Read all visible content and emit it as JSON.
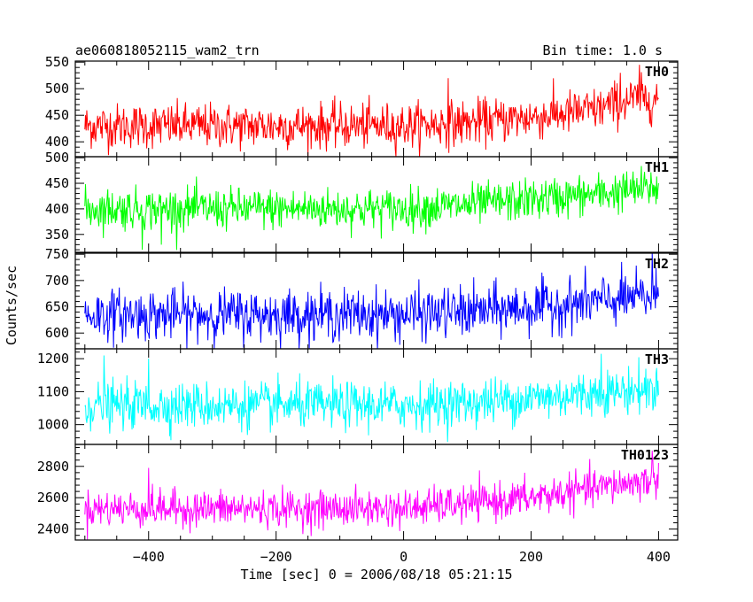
{
  "header": {
    "title": "ae060818052115_wam2_trn",
    "bin_time": "Bin time: 1.0 s"
  },
  "chart_data": {
    "type": "line",
    "xlabel": "Time [sec] 0 = 2006/08/18 05:21:15",
    "ylabel": "Counts/sec",
    "xlim": [
      -515,
      430
    ],
    "xticks_major": [
      -400,
      -200,
      0,
      200,
      400
    ],
    "xtick_labels": [
      "−400",
      "−200",
      "0",
      "200",
      "400"
    ],
    "x_start": -500,
    "x_end": 400,
    "bin_time": 1.0,
    "panels": [
      {
        "name": "TH0",
        "color": "#ff0000",
        "ylim": [
          372,
          552
        ],
        "yticks": [
          400,
          450,
          500,
          550
        ],
        "ytick_labels": [
          "400",
          "450",
          "500",
          "550"
        ],
        "trend": [
          [
            -500,
            430
          ],
          [
            0,
            430
          ],
          [
            100,
            436
          ],
          [
            200,
            446
          ],
          [
            300,
            460
          ],
          [
            350,
            478
          ],
          [
            400,
            482
          ]
        ],
        "noise_sd": 21,
        "spikes": [
          [
            70,
            520
          ],
          [
            340,
            530
          ],
          [
            370,
            545
          ]
        ]
      },
      {
        "name": "TH1",
        "color": "#00ff00",
        "ylim": [
          315,
          502
        ],
        "yticks": [
          350,
          400,
          450,
          500
        ],
        "ytick_labels": [
          "350",
          "400",
          "450",
          "500"
        ],
        "trend": [
          [
            -500,
            400
          ],
          [
            0,
            400
          ],
          [
            100,
            407
          ],
          [
            200,
            418
          ],
          [
            300,
            428
          ],
          [
            400,
            442
          ]
        ],
        "noise_sd": 20,
        "spikes": [
          [
            -410,
            320
          ],
          [
            -380,
            330
          ]
        ]
      },
      {
        "name": "TH2",
        "color": "#0000ff",
        "ylim": [
          570,
          752
        ],
        "yticks": [
          600,
          650,
          700,
          750
        ],
        "ytick_labels": [
          "600",
          "650",
          "700",
          "750"
        ],
        "trend": [
          [
            -500,
            635
          ],
          [
            0,
            635
          ],
          [
            100,
            640
          ],
          [
            200,
            648
          ],
          [
            300,
            660
          ],
          [
            400,
            670
          ]
        ],
        "noise_sd": 24,
        "spikes": [
          [
            390,
            752
          ]
        ]
      },
      {
        "name": "TH3",
        "color": "#00ffff",
        "ylim": [
          940,
          1230
        ],
        "yticks": [
          1000,
          1100,
          1200
        ],
        "ytick_labels": [
          "1000",
          "1100",
          "1200"
        ],
        "trend": [
          [
            -500,
            1058
          ],
          [
            0,
            1058
          ],
          [
            100,
            1066
          ],
          [
            200,
            1080
          ],
          [
            300,
            1095
          ],
          [
            400,
            1110
          ]
        ],
        "noise_sd": 35,
        "spikes": [
          [
            -470,
            1210
          ],
          [
            -400,
            1200
          ],
          [
            310,
            1215
          ]
        ]
      },
      {
        "name": "TH0123",
        "color": "#ff00ff",
        "ylim": [
          2330,
          2940
        ],
        "yticks": [
          2400,
          2600,
          2800
        ],
        "ytick_labels": [
          "2400",
          "2600",
          "2800"
        ],
        "trend": [
          [
            -500,
            2530
          ],
          [
            0,
            2530
          ],
          [
            100,
            2560
          ],
          [
            200,
            2600
          ],
          [
            300,
            2660
          ],
          [
            400,
            2720
          ]
        ],
        "noise_sd": 58,
        "spikes": [
          [
            -400,
            2790
          ],
          [
            390,
            2900
          ]
        ]
      }
    ]
  }
}
